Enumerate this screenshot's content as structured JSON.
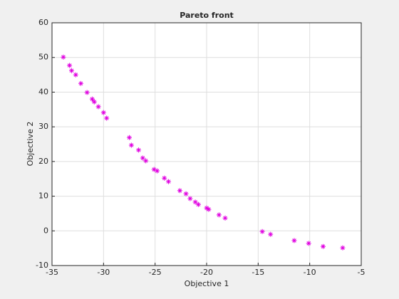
{
  "chart_data": {
    "type": "scatter",
    "title": "Pareto front",
    "x_label": "Objective 1",
    "y_label": "Objective 2",
    "series": [
      {
        "color": "#e000e0",
        "marker": "*",
        "x": [
          -33.9,
          -33.3,
          -33.1,
          -32.7,
          -32.2,
          -31.6,
          -31.1,
          -30.9,
          -30.5,
          -30.0,
          -29.7,
          -27.5,
          -27.3,
          -26.6,
          -26.2,
          -25.9,
          -25.1,
          -24.8,
          -24.1,
          -23.7,
          -22.6,
          -22.0,
          -21.6,
          -21.1,
          -20.8,
          -20.0,
          -19.8,
          -18.8,
          -18.2,
          -14.6,
          -13.8,
          -11.5,
          -10.1,
          -8.7,
          -6.8
        ],
        "values": [
          50.1,
          47.7,
          46.2,
          45.0,
          42.5,
          39.9,
          38.0,
          37.2,
          35.8,
          34.1,
          32.5,
          26.9,
          24.7,
          23.3,
          21.0,
          20.2,
          17.7,
          17.3,
          15.2,
          14.2,
          11.6,
          10.7,
          9.3,
          8.3,
          7.6,
          6.6,
          6.2,
          4.6,
          3.7,
          -0.2,
          -1.0,
          -2.8,
          -3.6,
          -4.5,
          -4.9
        ]
      }
    ],
    "xlim": [
      -35,
      -5
    ],
    "xticks": [
      -35,
      -30,
      -25,
      -20,
      -15,
      -10,
      -5
    ],
    "ylim": [
      -10,
      60
    ],
    "yticks": [
      -10,
      0,
      10,
      20,
      30,
      40,
      50,
      60
    ],
    "grid": true
  }
}
